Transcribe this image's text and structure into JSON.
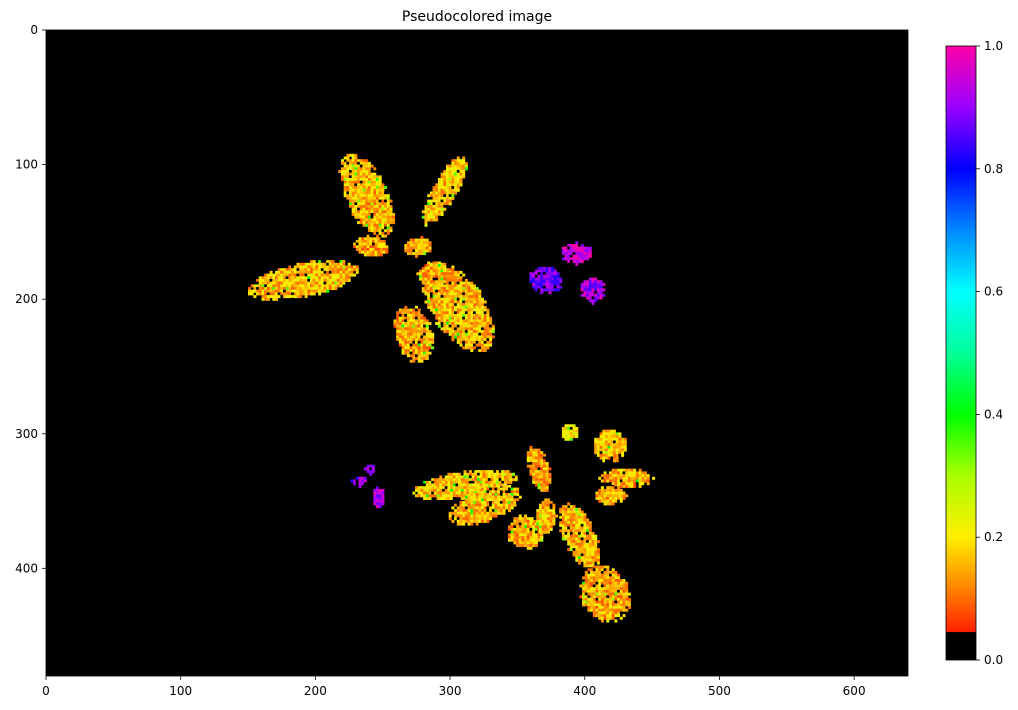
{
  "chart_data": {
    "type": "heatmap",
    "title": "Pseudocolored image",
    "xlabel": "",
    "ylabel": "",
    "image_size": {
      "width": 640,
      "height": 480
    },
    "xlim": [
      0,
      640
    ],
    "ylim": [
      480,
      0
    ],
    "x_ticks": [
      0,
      100,
      200,
      300,
      400,
      500,
      600
    ],
    "y_ticks": [
      0,
      100,
      200,
      300,
      400
    ],
    "background_value": 0,
    "colormap": {
      "name": "pseudocolor",
      "range": [
        0,
        1
      ],
      "ticks": [
        0.0,
        0.2,
        0.4,
        0.6,
        0.8,
        1.0
      ],
      "stops": [
        {
          "value": 0.0,
          "color": "#000000"
        },
        {
          "value": 0.045,
          "color": "#000000"
        },
        {
          "value": 0.046,
          "color": "#ff2000"
        },
        {
          "value": 0.12,
          "color": "#ff8800"
        },
        {
          "value": 0.2,
          "color": "#ffee00"
        },
        {
          "value": 0.3,
          "color": "#aaff00"
        },
        {
          "value": 0.4,
          "color": "#00ff00"
        },
        {
          "value": 0.5,
          "color": "#00ff99"
        },
        {
          "value": 0.6,
          "color": "#00ffff"
        },
        {
          "value": 0.7,
          "color": "#0088ff"
        },
        {
          "value": 0.8,
          "color": "#0000ff"
        },
        {
          "value": 0.9,
          "color": "#9900ff"
        },
        {
          "value": 1.0,
          "color": "#ff00aa"
        }
      ]
    },
    "regions": [
      {
        "name": "plant-1-leaf-upper",
        "cx": 237,
        "cy": 122,
        "rx": 16,
        "ry": 34,
        "rot": -25,
        "value": 0.16
      },
      {
        "name": "plant-1-leaf-upper-right",
        "cx": 295,
        "cy": 118,
        "rx": 9,
        "ry": 30,
        "rot": 30,
        "value": 0.17
      },
      {
        "name": "plant-1-leaf-left",
        "cx": 190,
        "cy": 185,
        "rx": 42,
        "ry": 13,
        "rot": -12,
        "value": 0.16
      },
      {
        "name": "plant-1-leaf-center-small",
        "cx": 240,
        "cy": 160,
        "rx": 14,
        "ry": 8,
        "rot": 10,
        "value": 0.14
      },
      {
        "name": "plant-1-leaf-center-right",
        "cx": 275,
        "cy": 160,
        "rx": 11,
        "ry": 7,
        "rot": -10,
        "value": 0.15
      },
      {
        "name": "plant-1-leaf-big",
        "cx": 305,
        "cy": 205,
        "rx": 20,
        "ry": 38,
        "rot": -35,
        "value": 0.16
      },
      {
        "name": "plant-1-leaf-bottom",
        "cx": 272,
        "cy": 225,
        "rx": 14,
        "ry": 22,
        "rot": -15,
        "value": 0.15
      },
      {
        "name": "plant-1-leaf-mid",
        "cx": 287,
        "cy": 180,
        "rx": 12,
        "ry": 9,
        "rot": 0,
        "value": 0.14
      },
      {
        "name": "plant-2-leaf-left",
        "cx": 370,
        "cy": 185,
        "rx": 13,
        "ry": 10,
        "rot": 0,
        "value": 0.88
      },
      {
        "name": "plant-2-leaf-top",
        "cx": 393,
        "cy": 165,
        "rx": 12,
        "ry": 8,
        "rot": 0,
        "value": 0.95
      },
      {
        "name": "plant-2-leaf-right",
        "cx": 405,
        "cy": 192,
        "rx": 9,
        "ry": 10,
        "rot": 0,
        "value": 0.92
      },
      {
        "name": "plant-3-leaf-top",
        "cx": 388,
        "cy": 298,
        "rx": 7,
        "ry": 6,
        "rot": 0,
        "value": 0.2
      },
      {
        "name": "plant-3-leaf-top-right",
        "cx": 418,
        "cy": 308,
        "rx": 13,
        "ry": 12,
        "rot": 0,
        "value": 0.16
      },
      {
        "name": "plant-3-leaf-right",
        "cx": 430,
        "cy": 332,
        "rx": 20,
        "ry": 7,
        "rot": 0,
        "value": 0.15
      },
      {
        "name": "plant-3-leaf-right-small",
        "cx": 418,
        "cy": 345,
        "rx": 12,
        "ry": 7,
        "rot": 0,
        "value": 0.16
      },
      {
        "name": "plant-3-leaf-left-long",
        "cx": 310,
        "cy": 337,
        "rx": 40,
        "ry": 10,
        "rot": -8,
        "value": 0.17
      },
      {
        "name": "plant-3-leaf-mid",
        "cx": 325,
        "cy": 352,
        "rx": 28,
        "ry": 12,
        "rot": -20,
        "value": 0.16
      },
      {
        "name": "plant-3-leaf-center",
        "cx": 365,
        "cy": 325,
        "rx": 8,
        "ry": 18,
        "rot": -15,
        "value": 0.15
      },
      {
        "name": "plant-3-leaf-lower-left",
        "cx": 355,
        "cy": 372,
        "rx": 14,
        "ry": 13,
        "rot": 0,
        "value": 0.15
      },
      {
        "name": "plant-3-leaf-lower-center",
        "cx": 370,
        "cy": 360,
        "rx": 8,
        "ry": 14,
        "rot": 10,
        "value": 0.16
      },
      {
        "name": "plant-3-leaf-down",
        "cx": 395,
        "cy": 375,
        "rx": 12,
        "ry": 26,
        "rot": -25,
        "value": 0.16
      },
      {
        "name": "plant-3-leaf-down-far",
        "cx": 414,
        "cy": 418,
        "rx": 18,
        "ry": 22,
        "rot": -30,
        "value": 0.15
      },
      {
        "name": "plant-4-leaf-a",
        "cx": 232,
        "cy": 334,
        "rx": 6,
        "ry": 4,
        "rot": 0,
        "value": 0.9
      },
      {
        "name": "plant-4-leaf-b",
        "cx": 246,
        "cy": 346,
        "rx": 4,
        "ry": 9,
        "rot": 0,
        "value": 0.93
      },
      {
        "name": "plant-4-leaf-c",
        "cx": 240,
        "cy": 325,
        "rx": 4,
        "ry": 4,
        "rot": 0,
        "value": 0.88
      }
    ]
  }
}
